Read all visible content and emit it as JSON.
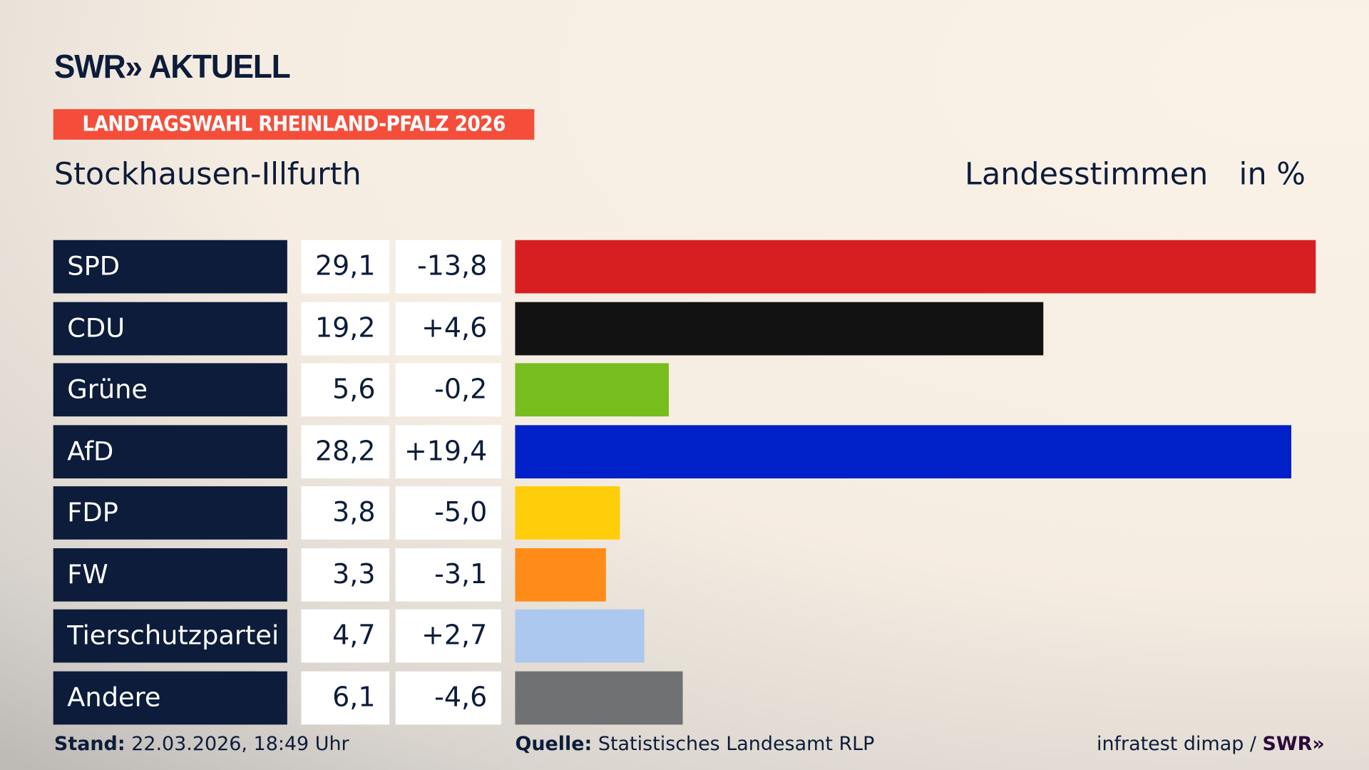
{
  "brand": {
    "logo": "SWR» AKTUELL",
    "badge": "LANDTAGSWAHL RHEINLAND-PFALZ 2026",
    "badge_color": "#f44e3b"
  },
  "region": "Stockhausen-Illfurth",
  "metric": "Landesstimmen",
  "unit": "in %",
  "chart_data": {
    "type": "bar",
    "orientation": "horizontal",
    "categories": [
      "SPD",
      "CDU",
      "Grüne",
      "AfD",
      "FDP",
      "FW",
      "Tierschutzpartei",
      "Andere"
    ],
    "values": [
      29.1,
      19.2,
      5.6,
      28.2,
      3.8,
      3.3,
      4.7,
      6.1
    ],
    "value_labels": [
      "29,1",
      "19,2",
      "5,6",
      "28,2",
      "3,8",
      "3,3",
      "4,7",
      "6,1"
    ],
    "changes": [
      -13.8,
      4.6,
      -0.2,
      19.4,
      -5.0,
      -3.1,
      2.7,
      -4.6
    ],
    "change_labels": [
      "-13,8",
      "+4,6",
      "-0,2",
      "+19,4",
      "-5,0",
      "-3,1",
      "+2,7",
      "-4,6"
    ],
    "colors": [
      "#d71f22",
      "#121212",
      "#78bd1e",
      "#0021c8",
      "#ffcd0a",
      "#ff8c19",
      "#acc8ef",
      "#707173"
    ],
    "xlim": [
      0,
      29.1
    ]
  },
  "footer": {
    "stand_label": "Stand:",
    "stand_value": "22.03.2026, 18:49 Uhr",
    "source_label": "Quelle:",
    "source_value": "Statistisches Landesamt RLP",
    "credit": "infratest dimap / ",
    "credit_brand": "SWR»"
  }
}
